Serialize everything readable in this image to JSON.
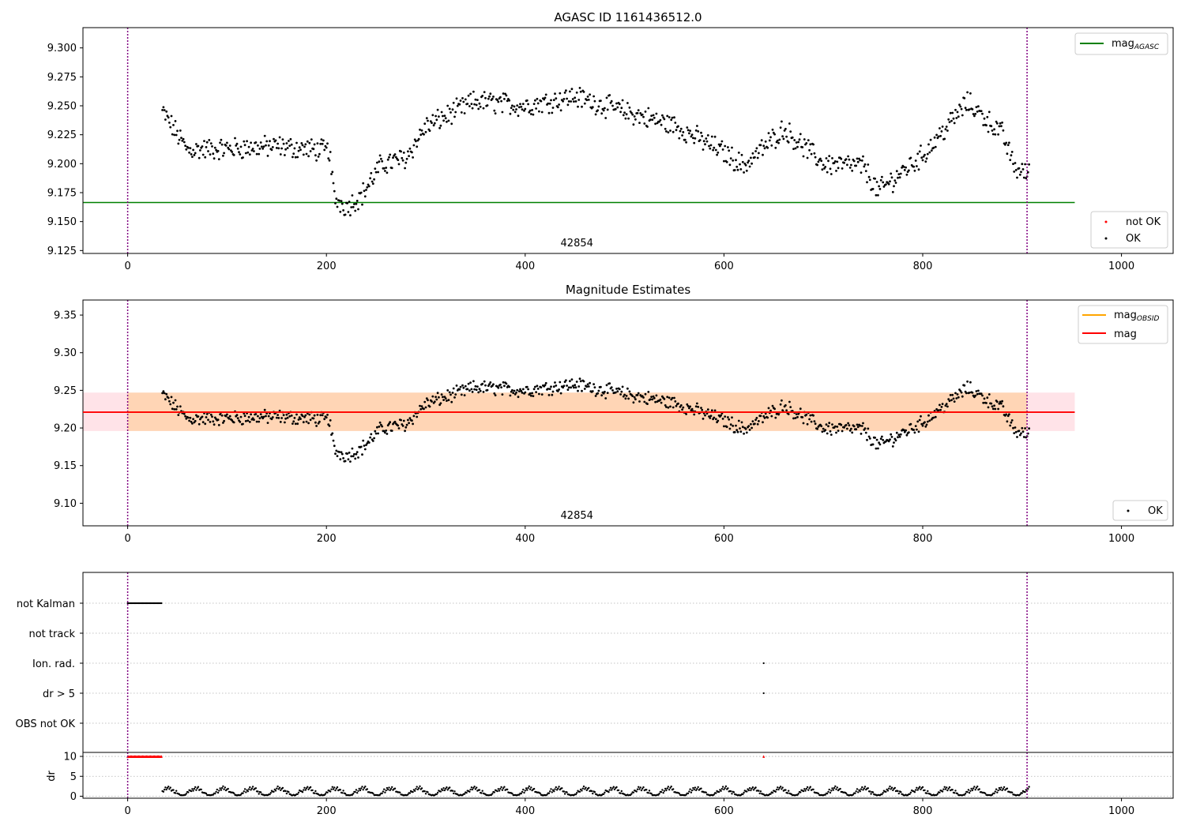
{
  "chart_data": [
    {
      "type": "scatter",
      "title": "AGASC ID 1161436512.0",
      "xlim": [
        -45,
        1052
      ],
      "ylim": [
        9.1225,
        9.3175
      ],
      "xticks": [
        0,
        200,
        400,
        600,
        800,
        1000
      ],
      "yticks": [
        9.125,
        9.15,
        9.175,
        9.2,
        9.225,
        9.25,
        9.275,
        9.3
      ],
      "ytick_labels": [
        "9.125",
        "9.150",
        "9.175",
        "9.200",
        "9.225",
        "9.250",
        "9.275",
        "9.300"
      ],
      "annotation": {
        "text": "42854",
        "x": 452
      },
      "vlines": [
        0,
        905
      ],
      "hline": {
        "name": "mag_AGASC",
        "y": 9.1665,
        "x": [
          -45,
          953
        ],
        "color": "#008000"
      },
      "series": [
        {
          "name": "not OK",
          "color": "#ff0000",
          "points": []
        },
        {
          "name": "OK",
          "color": "#000000",
          "x_start": 35,
          "x_end": 907,
          "x": [
            35,
            60,
            100,
            150,
            203,
            208,
            220,
            235,
            255,
            280,
            300,
            350,
            400,
            450,
            500,
            550,
            600,
            620,
            660,
            700,
            740,
            755,
            800,
            845,
            880,
            893,
            907
          ],
          "y": [
            9.245,
            9.212,
            9.213,
            9.215,
            9.211,
            9.17,
            9.163,
            9.172,
            9.199,
            9.205,
            9.232,
            9.254,
            9.25,
            9.258,
            9.245,
            9.233,
            9.21,
            9.198,
            9.23,
            9.2,
            9.198,
            9.176,
            9.207,
            9.253,
            9.226,
            9.196,
            9.191
          ],
          "noise": 0.008
        }
      ],
      "legend": [
        {
          "label": "mag",
          "sub": "AGASC",
          "placement": "upper-right"
        },
        {
          "label": "not OK",
          "placement": "lower-right"
        },
        {
          "label": "OK",
          "placement": "lower-right"
        }
      ]
    },
    {
      "type": "scatter",
      "title": "Magnitude Estimates",
      "xlim": [
        -45,
        1052
      ],
      "ylim": [
        9.07,
        9.37
      ],
      "xticks": [
        0,
        200,
        400,
        600,
        800,
        1000
      ],
      "yticks": [
        9.1,
        9.15,
        9.2,
        9.25,
        9.3,
        9.35
      ],
      "ytick_labels": [
        "9.10",
        "9.15",
        "9.20",
        "9.25",
        "9.30",
        "9.35"
      ],
      "annotation": {
        "text": "42854",
        "x": 452
      },
      "vlines": [
        0,
        905
      ],
      "bands": [
        {
          "y": [
            9.196,
            9.247
          ],
          "color": "#ffc0cb",
          "x": [
            -45,
            953
          ],
          "alpha": 0.45
        },
        {
          "y": [
            9.196,
            9.247
          ],
          "color": "#ffa500",
          "x": [
            0,
            905
          ],
          "alpha": 0.22
        }
      ],
      "hlines": [
        {
          "name": "mag_OBSID",
          "y": 9.221,
          "color": "#ffa500",
          "x": [
            0,
            905
          ]
        },
        {
          "name": "mag",
          "y": 9.221,
          "color": "#ff0000",
          "x": [
            -45,
            953
          ]
        }
      ],
      "series": [
        {
          "name": "OK",
          "color": "#000000",
          "same_as": "panel-1-OK"
        }
      ],
      "legend": [
        {
          "label": "mag",
          "sub": "OBSID",
          "placement": "upper-right"
        },
        {
          "label": "mag",
          "placement": "upper-right"
        },
        {
          "label": "OK",
          "placement": "lower-right"
        }
      ]
    },
    {
      "type": "scatter",
      "title": "",
      "xlim": [
        -45,
        1052
      ],
      "categories": [
        "not Kalman",
        "not track",
        "Ion. rad.",
        "dr > 5",
        "OBS not OK"
      ],
      "vlines": [
        0,
        905
      ],
      "flags": [
        {
          "category": "not Kalman",
          "x_start": 0,
          "x_end": 34
        },
        {
          "category": "Ion. rad.",
          "x": [
            640
          ]
        },
        {
          "category": "dr > 5",
          "x": [
            640
          ]
        }
      ]
    },
    {
      "type": "scatter",
      "title": "",
      "ylabel": "dr",
      "xlim": [
        -45,
        1052
      ],
      "ylim": [
        -0.5,
        11
      ],
      "yticks": [
        0,
        5,
        10
      ],
      "ytick_labels": [
        "0",
        "5",
        "10"
      ],
      "xticks": [
        0,
        200,
        400,
        600,
        800,
        1000
      ],
      "vlines": [
        0,
        905
      ],
      "clipped_markers": [
        {
          "x_start": 0,
          "x_end": 34,
          "y": 10,
          "color": "#ff0000"
        },
        {
          "x": 640,
          "y": 10,
          "color": "#ff0000"
        }
      ],
      "series": [
        {
          "name": "dr",
          "color": "#000000",
          "x_start": 35,
          "x_end": 907,
          "period": 28,
          "min": 0.3,
          "max": 2.5
        }
      ]
    }
  ]
}
